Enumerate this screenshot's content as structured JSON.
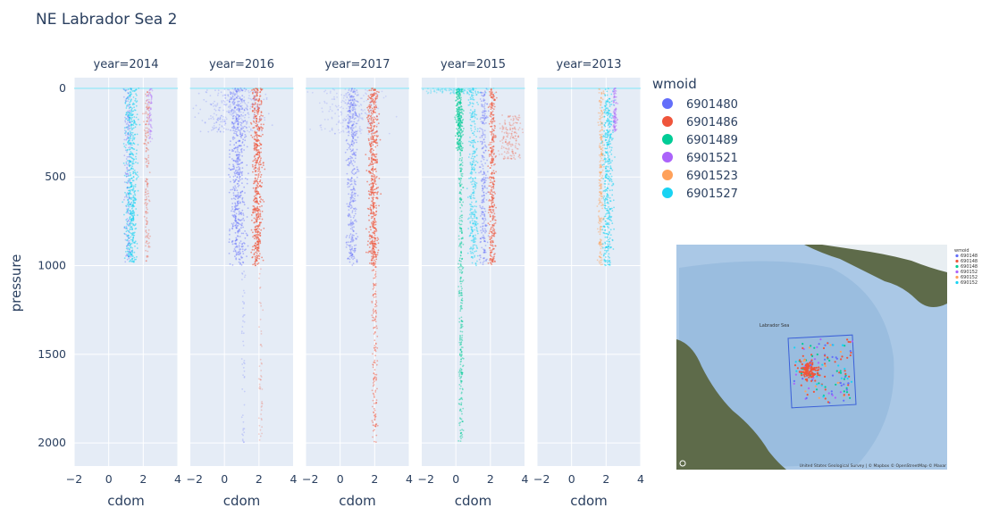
{
  "chart_data": {
    "type": "scatter",
    "title": "NE Labrador Sea 2",
    "xlabel": "cdom",
    "ylabel": "pressure",
    "xlim": [
      -2,
      4
    ],
    "ylim": [
      2130,
      -60
    ],
    "xticks": [
      "−2",
      "0",
      "2",
      "4"
    ],
    "yticks": [
      "0",
      "500",
      "1000",
      "1500",
      "2000"
    ],
    "grid": true,
    "legend": {
      "title": "wmoid",
      "position": "right"
    },
    "series": [
      {
        "name": "6901480",
        "color": "#636efa"
      },
      {
        "name": "6901486",
        "color": "#ef553b"
      },
      {
        "name": "6901489",
        "color": "#00cc96"
      },
      {
        "name": "6901521",
        "color": "#ab63fa"
      },
      {
        "name": "6901523",
        "color": "#ffa15a"
      },
      {
        "name": "6901527",
        "color": "#19d3f3"
      }
    ],
    "facets": [
      {
        "label": "year=2014",
        "profiles": [
          {
            "series": 5,
            "x": 1.3,
            "top": 0,
            "bottom": 980,
            "spread": 0.35,
            "alpha": 0.55,
            "n": 520
          },
          {
            "series": 0,
            "x": 1.1,
            "top": 0,
            "bottom": 980,
            "spread": 0.2,
            "alpha": 0.35,
            "n": 160
          },
          {
            "series": 1,
            "x": 2.2,
            "top": 0,
            "bottom": 980,
            "spread": 0.15,
            "alpha": 0.35,
            "n": 160
          },
          {
            "series": 3,
            "x": 2.4,
            "top": 0,
            "bottom": 300,
            "spread": 0.15,
            "alpha": 0.35,
            "n": 70
          }
        ]
      },
      {
        "label": "year=2016",
        "profiles": [
          {
            "series": 0,
            "x": 0.8,
            "top": 0,
            "bottom": 1000,
            "spread": 0.45,
            "alpha": 0.45,
            "n": 520
          },
          {
            "series": 1,
            "x": 1.9,
            "top": 0,
            "bottom": 1000,
            "spread": 0.3,
            "alpha": 0.6,
            "n": 520
          },
          {
            "series": 0,
            "x": 0.5,
            "top": 0,
            "bottom": 250,
            "spread": 1.8,
            "alpha": 0.25,
            "n": 300
          },
          {
            "series": 0,
            "x": 1.1,
            "top": 1000,
            "bottom": 2000,
            "spread": 0.1,
            "alpha": 0.25,
            "n": 50
          },
          {
            "series": 1,
            "x": 2.1,
            "top": 1000,
            "bottom": 2000,
            "spread": 0.1,
            "alpha": 0.25,
            "n": 50
          }
        ]
      },
      {
        "label": "year=2017",
        "profiles": [
          {
            "series": 0,
            "x": 0.7,
            "top": 0,
            "bottom": 1000,
            "spread": 0.3,
            "alpha": 0.4,
            "n": 400
          },
          {
            "series": 1,
            "x": 1.9,
            "top": 0,
            "bottom": 1000,
            "spread": 0.3,
            "alpha": 0.6,
            "n": 520
          },
          {
            "series": 1,
            "x": 2.0,
            "top": 1000,
            "bottom": 2000,
            "spread": 0.15,
            "alpha": 0.45,
            "n": 150
          },
          {
            "series": 0,
            "x": 0.5,
            "top": 0,
            "bottom": 260,
            "spread": 1.8,
            "alpha": 0.2,
            "n": 220
          }
        ]
      },
      {
        "label": "year=2015",
        "profiles": [
          {
            "series": 2,
            "x": 0.2,
            "top": 0,
            "bottom": 350,
            "spread": 0.2,
            "alpha": 0.55,
            "n": 250
          },
          {
            "series": 2,
            "x": 0.3,
            "top": 350,
            "bottom": 2000,
            "spread": 0.12,
            "alpha": 0.45,
            "n": 300
          },
          {
            "series": 5,
            "x": 1.0,
            "top": 0,
            "bottom": 1000,
            "spread": 0.25,
            "alpha": 0.5,
            "n": 300
          },
          {
            "series": 0,
            "x": 1.6,
            "top": 0,
            "bottom": 1000,
            "spread": 0.2,
            "alpha": 0.4,
            "n": 260
          },
          {
            "series": 1,
            "x": 2.1,
            "top": 0,
            "bottom": 1000,
            "spread": 0.2,
            "alpha": 0.55,
            "n": 360
          },
          {
            "series": 1,
            "x": 3.2,
            "top": 150,
            "bottom": 400,
            "spread": 0.7,
            "alpha": 0.3,
            "n": 160
          },
          {
            "series": 5,
            "x": 0.0,
            "top": 0,
            "bottom": 30,
            "spread": 1.8,
            "alpha": 0.3,
            "n": 100
          }
        ]
      },
      {
        "label": "year=2013",
        "profiles": [
          {
            "series": 4,
            "x": 1.7,
            "top": 0,
            "bottom": 1000,
            "spread": 0.15,
            "alpha": 0.45,
            "n": 220
          },
          {
            "series": 5,
            "x": 2.1,
            "top": 0,
            "bottom": 1000,
            "spread": 0.3,
            "alpha": 0.55,
            "n": 400
          },
          {
            "series": 3,
            "x": 2.5,
            "top": 0,
            "bottom": 250,
            "spread": 0.12,
            "alpha": 0.45,
            "n": 90
          }
        ]
      }
    ]
  },
  "map_inset": {
    "legend_title": "wmoid",
    "legend_items": [
      "690148",
      "690148",
      "690148",
      "690152",
      "690152",
      "690152"
    ],
    "sea_label": "Labrador Sea",
    "attribution": "United States Geological Survey | © Mapbox © OpenStreetMap © Maxar",
    "colors": {
      "ocean": "#aac8e6",
      "deep": "#8fb5db",
      "land": "#5e6b4a",
      "ice": "#e8eef2",
      "box": "#3a5fd8"
    }
  }
}
